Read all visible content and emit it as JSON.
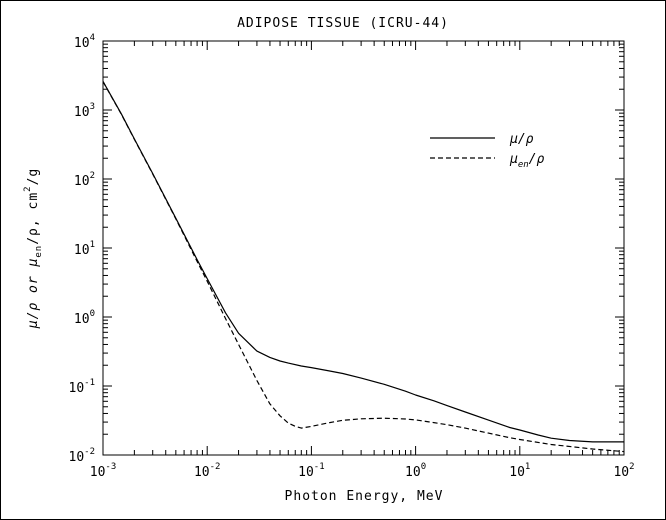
{
  "chart_data": {
    "type": "line",
    "title": "ADIPOSE TISSUE (ICRU-44)",
    "xlabel": "Photon Energy, MeV",
    "ylabel_parts": [
      "μ/ρ or μ",
      "en",
      "/ρ, cm",
      "2",
      "/g"
    ],
    "x_scale": "log",
    "y_scale": "log",
    "xlim": [
      0.001,
      100
    ],
    "ylim": [
      0.01,
      10000
    ],
    "grid": false,
    "legend_position": "top-right",
    "x_ticks": [
      {
        "value": 0.001,
        "base": "10",
        "exp": "-3"
      },
      {
        "value": 0.01,
        "base": "10",
        "exp": "-2"
      },
      {
        "value": 0.1,
        "base": "10",
        "exp": "-1"
      },
      {
        "value": 1,
        "base": "10",
        "exp": "0"
      },
      {
        "value": 10,
        "base": "10",
        "exp": "1"
      },
      {
        "value": 100,
        "base": "10",
        "exp": "2"
      }
    ],
    "y_ticks": [
      {
        "value": 0.01,
        "base": "10",
        "exp": "-2"
      },
      {
        "value": 0.1,
        "base": "10",
        "exp": "-1"
      },
      {
        "value": 1,
        "base": "10",
        "exp": "0"
      },
      {
        "value": 10,
        "base": "10",
        "exp": "1"
      },
      {
        "value": 100,
        "base": "10",
        "exp": "2"
      },
      {
        "value": 1000,
        "base": "10",
        "exp": "3"
      },
      {
        "value": 10000,
        "base": "10",
        "exp": "4"
      }
    ],
    "series": [
      {
        "name": "μ/ρ",
        "style": "solid",
        "color": "#000000",
        "x": [
          0.001,
          0.0015,
          0.002,
          0.003,
          0.005,
          0.008,
          0.01,
          0.015,
          0.02,
          0.03,
          0.04,
          0.05,
          0.06,
          0.08,
          0.1,
          0.15,
          0.2,
          0.3,
          0.5,
          0.8,
          1,
          1.5,
          2,
          3,
          5,
          8,
          10,
          15,
          20,
          30,
          50,
          100
        ],
        "y": [
          2600,
          880,
          380,
          120,
          27,
          6.8,
          3.6,
          1.15,
          0.58,
          0.32,
          0.26,
          0.23,
          0.215,
          0.195,
          0.185,
          0.165,
          0.152,
          0.13,
          0.106,
          0.084,
          0.074,
          0.061,
          0.052,
          0.042,
          0.032,
          0.025,
          0.023,
          0.0195,
          0.0175,
          0.0162,
          0.0155,
          0.0155
        ]
      },
      {
        "name": "μ",
        "name_sub": "en",
        "name_tail": "/ρ",
        "style": "dashed",
        "color": "#000000",
        "x": [
          0.001,
          0.0015,
          0.002,
          0.003,
          0.005,
          0.008,
          0.01,
          0.015,
          0.02,
          0.03,
          0.04,
          0.05,
          0.06,
          0.07,
          0.08,
          0.1,
          0.15,
          0.2,
          0.3,
          0.5,
          0.8,
          1,
          1.5,
          2,
          3,
          5,
          8,
          10,
          20,
          50,
          100
        ],
        "y": [
          2580,
          870,
          375,
          118,
          26.5,
          6.4,
          3.3,
          0.95,
          0.4,
          0.12,
          0.055,
          0.037,
          0.029,
          0.026,
          0.0245,
          0.026,
          0.0295,
          0.0318,
          0.0335,
          0.0342,
          0.0333,
          0.0323,
          0.0295,
          0.0275,
          0.0245,
          0.0208,
          0.0178,
          0.0168,
          0.0142,
          0.0122,
          0.0112
        ]
      }
    ]
  }
}
